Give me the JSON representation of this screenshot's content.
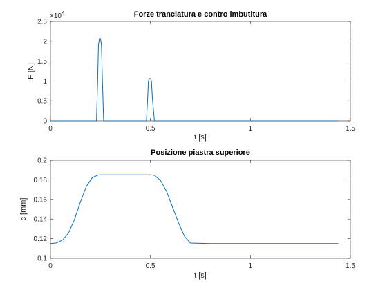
{
  "colors": {
    "series": "#0072BD",
    "axis": "#262626",
    "background": "#FFFFFF"
  },
  "chart_data": [
    {
      "type": "line",
      "title": "Forze tranciatura e contro imbutitura",
      "xlabel": "t [s]",
      "ylabel": "F [N]",
      "y_multiplier_label": "×10",
      "y_multiplier_exponent": "4",
      "xlim": [
        0,
        1.5
      ],
      "ylim": [
        0,
        2.5
      ],
      "y_scale_factor": 10000,
      "xticks": [
        0,
        0.5,
        1,
        1.5
      ],
      "xtick_labels": [
        "0",
        "0.5",
        "1",
        "1.5"
      ],
      "yticks": [
        0,
        0.5,
        1,
        1.5,
        2,
        2.5
      ],
      "ytick_labels": [
        "0",
        "0.5",
        "1",
        "1.5",
        "2",
        "2.5"
      ],
      "grid": false,
      "series": [
        {
          "x": [
            0,
            0.23,
            0.236,
            0.24,
            0.245,
            0.25,
            0.255,
            0.26,
            0.266,
            0.27,
            0.48,
            0.486,
            0.49,
            0.495,
            0.5,
            0.505,
            0.51,
            0.52,
            1.44
          ],
          "y": [
            0,
            0,
            1.0,
            1.9,
            2.07,
            2.07,
            1.9,
            1.0,
            0,
            0,
            0,
            0.55,
            1.0,
            1.06,
            1.06,
            1.0,
            0.55,
            0,
            0
          ]
        }
      ]
    },
    {
      "type": "line",
      "title": "Posizione piastra superiore",
      "xlabel": "t [s]",
      "ylabel": "c [mm]",
      "xlim": [
        0,
        1.5
      ],
      "ylim": [
        0.1,
        0.2
      ],
      "xticks": [
        0,
        0.5,
        1,
        1.5
      ],
      "xtick_labels": [
        "0",
        "0.5",
        "1",
        "1.5"
      ],
      "yticks": [
        0.1,
        0.12,
        0.14,
        0.16,
        0.18,
        0.2
      ],
      "ytick_labels": [
        "0.1",
        "0.12",
        "0.14",
        "0.16",
        "0.18",
        "0.2"
      ],
      "grid": false,
      "series": [
        {
          "x": [
            0,
            0.03,
            0.06,
            0.09,
            0.12,
            0.15,
            0.18,
            0.21,
            0.24,
            0.25,
            0.3,
            0.35,
            0.4,
            0.45,
            0.5,
            0.52,
            0.55,
            0.58,
            0.61,
            0.64,
            0.67,
            0.7,
            0.8,
            1.0,
            1.2,
            1.44
          ],
          "y": [
            0.115,
            0.1156,
            0.1185,
            0.1255,
            0.1395,
            0.1575,
            0.1735,
            0.1825,
            0.1849,
            0.185,
            0.185,
            0.185,
            0.185,
            0.185,
            0.185,
            0.1845,
            0.1795,
            0.1685,
            0.1525,
            0.1365,
            0.1225,
            0.1155,
            0.115,
            0.115,
            0.115,
            0.115
          ]
        }
      ]
    }
  ]
}
